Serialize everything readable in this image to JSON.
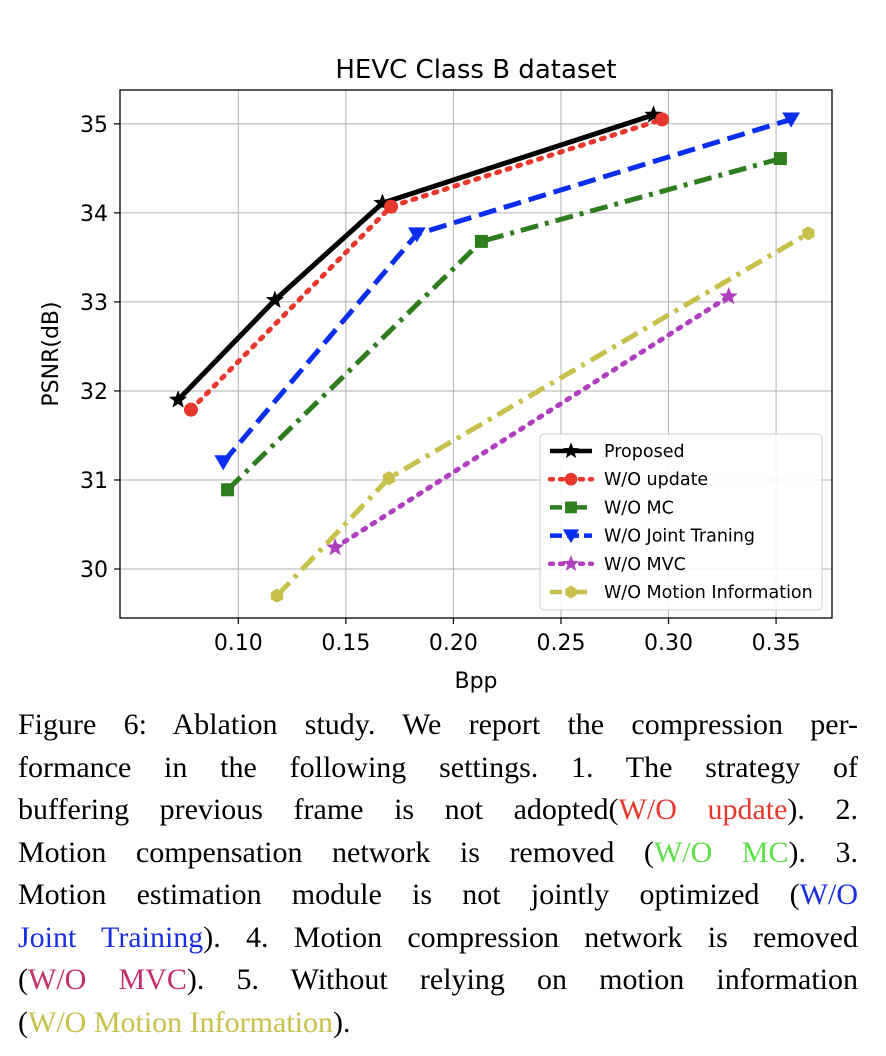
{
  "chart_data": {
    "type": "line",
    "title": "HEVC Class B dataset",
    "xlabel": "Bpp",
    "ylabel": "PSNR(dB)",
    "xlim": [
      0.045,
      0.376
    ],
    "ylim": [
      29.45,
      35.38
    ],
    "xticks": [
      "0.10",
      "0.15",
      "0.20",
      "0.25",
      "0.30",
      "0.35"
    ],
    "xtick_values": [
      0.1,
      0.15,
      0.2,
      0.25,
      0.3,
      0.35
    ],
    "yticks": [
      "30",
      "31",
      "32",
      "33",
      "34",
      "35"
    ],
    "ytick_values": [
      30,
      31,
      32,
      33,
      34,
      35
    ],
    "grid": true,
    "legend_position": "lower-right",
    "series": [
      {
        "name": "Proposed",
        "color": "#000000",
        "marker": "star",
        "dash": "solid",
        "x": [
          0.072,
          0.117,
          0.167,
          0.293
        ],
        "y": [
          31.9,
          33.02,
          34.11,
          35.1
        ]
      },
      {
        "name": "W/O update",
        "color": "#e8382d",
        "marker": "circle",
        "dash": "dotted",
        "x": [
          0.078,
          0.171,
          0.297
        ],
        "y": [
          31.79,
          34.07,
          35.05
        ]
      },
      {
        "name": "W/O MC",
        "color": "#2e7d1f",
        "marker": "square",
        "dash": "dashdot",
        "x": [
          0.095,
          0.213,
          0.352
        ],
        "y": [
          30.89,
          33.68,
          34.61
        ]
      },
      {
        "name": "W/O Joint Traning",
        "color": "#0a2ef0",
        "marker": "triangle-down",
        "dash": "dashed",
        "x": [
          0.093,
          0.183,
          0.357
        ],
        "y": [
          31.2,
          33.76,
          35.05
        ]
      },
      {
        "name": "W/O MVC",
        "color": "#b03fbf",
        "marker": "star",
        "dash": "dotted",
        "x": [
          0.145,
          0.328
        ],
        "y": [
          30.24,
          33.06
        ]
      },
      {
        "name": "W/O Motion Information",
        "color": "#c7c04a",
        "marker": "hexagon",
        "dash": "dashdot",
        "x": [
          0.118,
          0.17,
          0.365
        ],
        "y": [
          29.7,
          31.02,
          33.77
        ]
      }
    ]
  },
  "caption": {
    "lines": [
      [
        {
          "t": "Figure 6: Ablation study.  We report the compression per-"
        }
      ],
      [
        {
          "t": "formance in the following settings.  1.  The strategy of"
        }
      ],
      [
        {
          "t": "buffering previous frame is not adopted("
        },
        {
          "t": "W/O update",
          "c": "#e8382d"
        },
        {
          "t": ").  2."
        }
      ],
      [
        {
          "t": "Motion compensation network is removed ("
        },
        {
          "t": "W/O MC",
          "c": "#5fe04a"
        },
        {
          "t": "). 3."
        }
      ],
      [
        {
          "t": "Motion estimation module is not jointly optimized ("
        },
        {
          "t": "W/O",
          "c": "#1a2fe0"
        }
      ],
      [
        {
          "t": "Joint Training",
          "c": "#1a2fe0"
        },
        {
          "t": "). 4. Motion compression network is removed"
        }
      ],
      [
        {
          "t": "("
        },
        {
          "t": "W/O MVC",
          "c": "#c0306e"
        },
        {
          "t": "). 5.  Without relying on motion information"
        }
      ],
      [
        {
          "t": "("
        },
        {
          "t": "W/O Motion Information",
          "c": "#c7c04a"
        },
        {
          "t": ")."
        }
      ]
    ]
  }
}
